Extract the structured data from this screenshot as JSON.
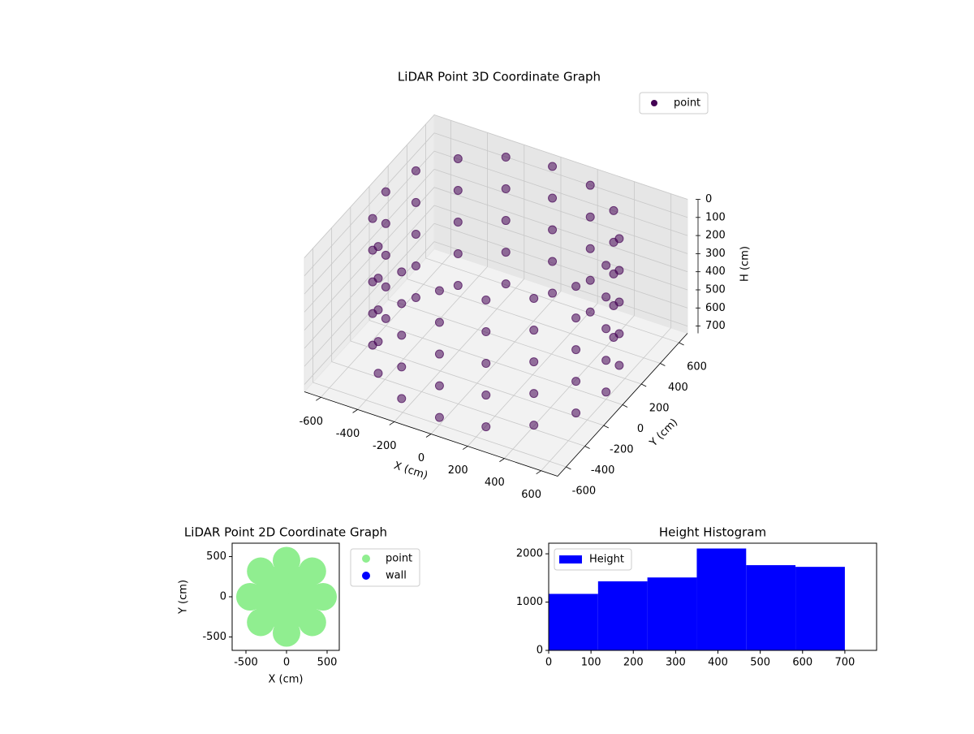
{
  "chart_data": [
    {
      "type": "scatter3d",
      "title": "LiDAR Point 3D Coordinate Graph",
      "x_label": "X (cm)",
      "y_label": "Y (cm)",
      "z_label": "H (cm)",
      "xlim": [
        -690,
        690
      ],
      "ylim": [
        -690,
        690
      ],
      "zlim": [
        0,
        740
      ],
      "z_inverted": true,
      "xticks": [
        -600,
        -400,
        -200,
        0,
        200,
        400,
        600
      ],
      "yticks": [
        -600,
        -400,
        -200,
        0,
        200,
        400,
        600
      ],
      "zticks": [
        0,
        100,
        200,
        300,
        400,
        500,
        600,
        700
      ],
      "grid": true,
      "legend": "upper right",
      "series": [
        {
          "name": "point",
          "color": "#440154",
          "x": [
            600,
            554,
            424,
            230,
            0,
            -230,
            -424,
            -554,
            -600,
            -554,
            -424,
            -230,
            0,
            230,
            424,
            554,
            600,
            554,
            424,
            230,
            0,
            -230,
            -424,
            -554,
            -600,
            -554,
            -424,
            -230,
            0,
            230,
            424,
            554,
            600,
            554,
            424,
            230,
            0,
            -230,
            -424,
            -554,
            -600,
            -554,
            -424,
            -230,
            0,
            230,
            424,
            554,
            600,
            554,
            424,
            230,
            0,
            -230,
            -424,
            -554,
            -600,
            -554,
            -424,
            -230,
            0,
            230,
            424,
            554,
            600,
            554,
            424,
            230,
            0,
            -230,
            -424,
            -554,
            -600,
            -554,
            -424,
            -230,
            0,
            230,
            424,
            554
          ],
          "y": [
            0,
            230,
            424,
            554,
            600,
            554,
            424,
            230,
            0,
            -230,
            -424,
            -554,
            -600,
            -554,
            -424,
            -230,
            0,
            230,
            424,
            554,
            600,
            554,
            424,
            230,
            0,
            -230,
            -424,
            -554,
            -600,
            -554,
            -424,
            -230,
            0,
            230,
            424,
            554,
            600,
            554,
            424,
            230,
            0,
            -230,
            -424,
            -554,
            -600,
            -554,
            -424,
            -230,
            0,
            230,
            424,
            554,
            600,
            554,
            424,
            230,
            0,
            -230,
            -424,
            -554,
            -600,
            -554,
            -424,
            -230,
            0,
            230,
            424,
            554,
            600,
            554,
            424,
            230,
            0,
            -230,
            -424,
            -554,
            -600,
            -554,
            -424,
            -230
          ],
          "h": [
            0,
            0,
            0,
            0,
            0,
            0,
            0,
            0,
            0,
            0,
            0,
            0,
            0,
            0,
            0,
            0,
            175,
            175,
            175,
            175,
            175,
            175,
            175,
            175,
            175,
            175,
            175,
            175,
            175,
            175,
            175,
            175,
            350,
            350,
            350,
            350,
            350,
            350,
            350,
            350,
            350,
            350,
            350,
            350,
            350,
            350,
            350,
            350,
            525,
            525,
            525,
            525,
            525,
            525,
            525,
            525,
            525,
            525,
            525,
            525,
            525,
            525,
            525,
            525,
            700,
            700,
            700,
            700,
            700,
            700,
            700,
            700,
            700,
            700,
            700,
            700,
            700,
            700,
            700,
            700
          ]
        }
      ]
    },
    {
      "type": "scatter",
      "title": "LiDAR Point 2D Coordinate Graph",
      "x_label": "X (cm)",
      "y_label": "Y (cm)",
      "xlim": [
        -670,
        650
      ],
      "ylim": [
        -667,
        667
      ],
      "xticks": [
        -500,
        0,
        500
      ],
      "yticks": [
        -500,
        0,
        500
      ],
      "legend": "outside right",
      "series": [
        {
          "name": "point",
          "color": "#90ee90",
          "x": [
            0,
            150,
            106,
            0,
            -106,
            -150,
            -106,
            0,
            106,
            300,
            212,
            0,
            -212,
            -300,
            -212,
            0,
            212,
            450,
            318,
            0,
            -318,
            -450,
            -318,
            0,
            318
          ],
          "y": [
            0,
            0,
            106,
            150,
            106,
            0,
            -106,
            -150,
            -106,
            0,
            212,
            300,
            212,
            0,
            -212,
            -300,
            -212,
            0,
            318,
            450,
            318,
            0,
            -318,
            -450,
            -318
          ]
        },
        {
          "name": "wall",
          "color": "#0000ff",
          "x": [],
          "y": []
        }
      ]
    },
    {
      "type": "histogram",
      "title": "Height Histogram",
      "bins": [
        0,
        116.7,
        233.3,
        350,
        466.7,
        583.3,
        700
      ],
      "xlim": [
        0,
        775
      ],
      "ylim": [
        0,
        2220
      ],
      "xticks": [
        0,
        100,
        200,
        300,
        400,
        500,
        600,
        700
      ],
      "yticks": [
        0,
        1000,
        2000
      ],
      "legend": "upper left",
      "series": [
        {
          "name": "Height",
          "color": "#0000ff",
          "values": [
            1170,
            1430,
            1510,
            2110,
            1765,
            1730
          ]
        }
      ]
    }
  ]
}
